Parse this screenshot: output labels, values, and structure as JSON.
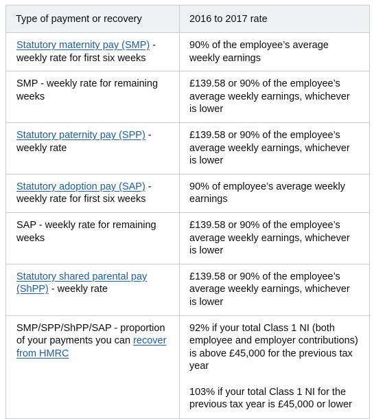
{
  "table": {
    "headers": [
      "Type of payment or recovery",
      "2016 to 2017 rate"
    ],
    "rows": [
      {
        "link": "Statutory maternity pay (SMP)",
        "text": " - weekly rate for first six weeks",
        "rate": "90% of the employee’s average weekly earnings"
      },
      {
        "text": "SMP - weekly rate for remaining weeks",
        "rate": "£139.58 or 90% of the employee’s average weekly earnings, whichever is lower"
      },
      {
        "link": "Statutory paternity pay (SPP)",
        "text": " - weekly rate",
        "rate": "£139.58 or 90% of the employee’s average weekly earnings, whichever is lower"
      },
      {
        "link": "Statutory adoption pay (SAP)",
        "text": " - weekly rate for first six weeks",
        "rate": "90% of employee’s average weekly earnings"
      },
      {
        "text": "SAP - weekly rate for remaining weeks",
        "rate": "£139.58 or 90% of the employee’s average weekly earnings, whichever is lower"
      },
      {
        "link": "Statutory shared parental pay (ShPP)",
        "text": " - weekly rate",
        "rate": "£139.58 or 90% of the employee’s average weekly earnings, whichever is lower"
      },
      {
        "text": "SMP/SPP/ShPP/SAP - proportion of your payments you can ",
        "link_after": "recover from HMRC",
        "rate": "92% if your total Class 1 NI (both employee and employer contributions) is above £45,000 for the previous tax year",
        "rate2": "103% if your total Class 1 NI for the previous tax year is £45,000 or lower"
      }
    ]
  }
}
